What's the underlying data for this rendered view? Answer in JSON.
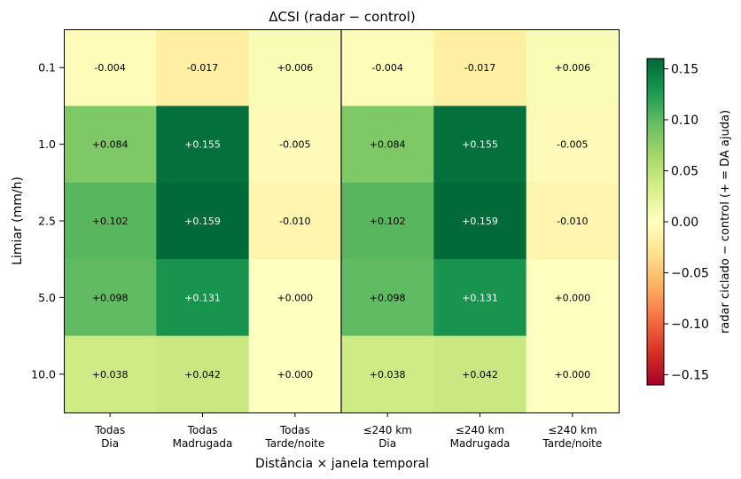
{
  "chart_data": {
    "type": "heatmap",
    "title": "ΔCSI  (radar − control)",
    "xlabel": "Distância × janela temporal",
    "ylabel": "Limiar (mm/h)",
    "x_categories": [
      {
        "line1": "Todas",
        "line2": "Dia"
      },
      {
        "line1": "Todas",
        "line2": "Madrugada"
      },
      {
        "line1": "Todas",
        "line2": "Tarde/noite"
      },
      {
        "line1": "≤240 km",
        "line2": "Dia"
      },
      {
        "line1": "≤240 km",
        "line2": "Madrugada"
      },
      {
        "line1": "≤240 km",
        "line2": "Tarde/noite"
      }
    ],
    "y_categories": [
      "0.1",
      "1.0",
      "2.5",
      "5.0",
      "10.0"
    ],
    "values": [
      [
        -0.004,
        -0.017,
        0.006,
        -0.004,
        -0.017,
        0.006
      ],
      [
        0.084,
        0.155,
        -0.005,
        0.084,
        0.155,
        -0.005
      ],
      [
        0.102,
        0.159,
        -0.01,
        0.102,
        0.159,
        -0.01
      ],
      [
        0.098,
        0.131,
        0.0,
        0.098,
        0.131,
        0.0
      ],
      [
        0.038,
        0.042,
        0.0,
        0.038,
        0.042,
        0.0
      ]
    ],
    "cell_labels": [
      [
        "-0.004",
        "-0.017",
        "+0.006",
        "-0.004",
        "-0.017",
        "+0.006"
      ],
      [
        "+0.084",
        "+0.155",
        "-0.005",
        "+0.084",
        "+0.155",
        "-0.005"
      ],
      [
        "+0.102",
        "+0.159",
        "-0.010",
        "+0.102",
        "+0.159",
        "-0.010"
      ],
      [
        "+0.098",
        "+0.131",
        "+0.000",
        "+0.098",
        "+0.131",
        "+0.000"
      ],
      [
        "+0.038",
        "+0.042",
        "+0.000",
        "+0.038",
        "+0.042",
        "+0.000"
      ]
    ],
    "colormap": "RdYlGn",
    "vmin": -0.16,
    "vmax": 0.16,
    "colorbar": {
      "label": "radar ciclado − control  (+ = DA ajuda)",
      "ticks": [
        0.15,
        0.1,
        0.05,
        0.0,
        -0.05,
        -0.1,
        -0.15
      ],
      "tick_labels": [
        "0.15",
        "0.10",
        "0.05",
        "0.00",
        "−0.05",
        "−0.10",
        "−0.15"
      ]
    },
    "divider_after_column": 2
  }
}
